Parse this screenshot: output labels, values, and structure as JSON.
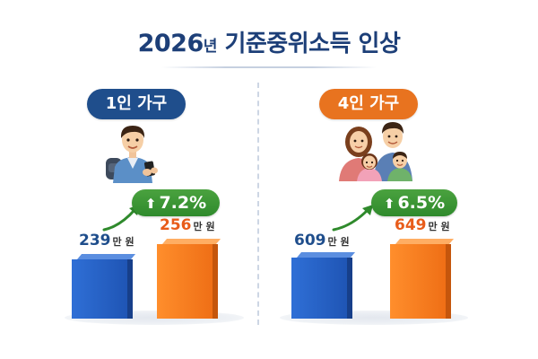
{
  "title": {
    "year": "2026",
    "year_suffix": "년",
    "rest": "기준중위소득 인상"
  },
  "left": {
    "label": "1인 가구",
    "before": {
      "num": "239",
      "unit": "만 원"
    },
    "after": {
      "num": "256",
      "unit": "만 원"
    },
    "increase": "7.2%"
  },
  "right": {
    "label": "4인 가구",
    "before": {
      "num": "609",
      "unit": "만 원"
    },
    "after": {
      "num": "649",
      "unit": "만 원"
    },
    "increase": "6.5%"
  },
  "colors": {
    "title": "#1d3f78",
    "blue_bar": "#1f5bc0",
    "orange_bar": "#f27a1f",
    "badge_green": "#3a9a36"
  },
  "icons": [
    "person-with-phone-illustration",
    "family-illustration",
    "up-arrow-icon"
  ]
}
